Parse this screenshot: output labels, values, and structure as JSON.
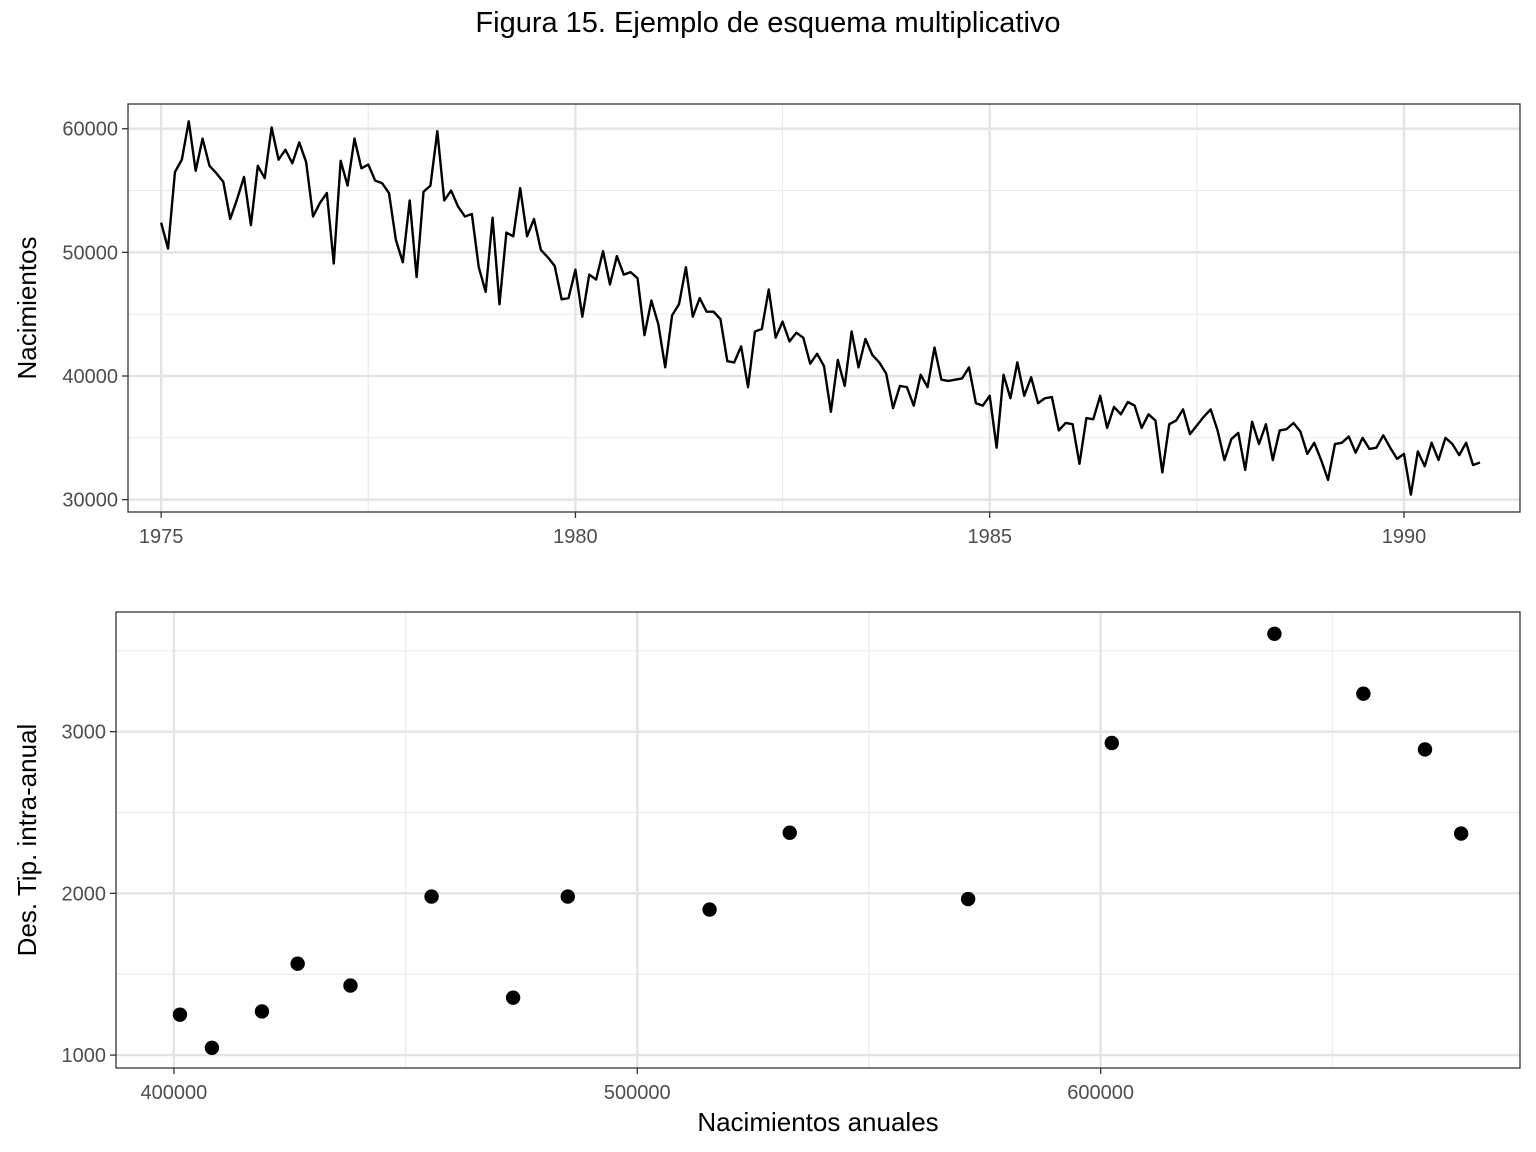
{
  "figure": {
    "title": "Figura 15. Ejemplo de esquema multiplicativo"
  },
  "chart_data": [
    {
      "type": "line",
      "title": "",
      "xlabel": "",
      "ylabel": "Nacimientos",
      "xlim": [
        1974.6,
        1991.4
      ],
      "ylim": [
        29000,
        62000
      ],
      "x_ticks": [
        1975,
        1980,
        1985,
        1990
      ],
      "x_tick_labels": [
        "1975",
        "1980",
        "1985",
        "1990"
      ],
      "y_ticks": [
        30000,
        40000,
        50000,
        60000
      ],
      "y_tick_labels": [
        "30000",
        "40000",
        "50000",
        "60000"
      ],
      "grid": true,
      "line_color": "#000000",
      "start": 1975,
      "frequency": 12,
      "values": [
        52400,
        50300,
        56500,
        57500,
        60600,
        56600,
        59200,
        57000,
        56400,
        55700,
        52700,
        54300,
        56100,
        52200,
        57000,
        56000,
        60100,
        57500,
        58300,
        57200,
        58900,
        57300,
        52900,
        54000,
        54800,
        49100,
        57400,
        55400,
        59200,
        56800,
        57100,
        55800,
        55600,
        54800,
        51000,
        49200,
        54200,
        48000,
        54900,
        55400,
        59800,
        54200,
        55000,
        53700,
        52900,
        53100,
        48800,
        46800,
        52800,
        45800,
        51600,
        51300,
        55200,
        51300,
        52700,
        50200,
        49600,
        48900,
        46200,
        46300,
        48600,
        44800,
        48200,
        47800,
        50100,
        47400,
        49700,
        48200,
        48400,
        47900,
        43300,
        46100,
        44200,
        40700,
        44900,
        45800,
        48800,
        44800,
        46300,
        45200,
        45200,
        44600,
        41200,
        41100,
        42400,
        39100,
        43600,
        43800,
        47000,
        43100,
        44400,
        42800,
        43500,
        43100,
        41000,
        41800,
        40800,
        37100,
        41300,
        39200,
        43600,
        40700,
        43000,
        41700,
        41100,
        40200,
        37400,
        39200,
        39100,
        37600,
        40100,
        39100,
        42300,
        39700,
        39600,
        39700,
        39800,
        40700,
        37800,
        37600,
        38400,
        34200,
        40100,
        38200,
        41100,
        38400,
        39900,
        37800,
        38200,
        38300,
        35600,
        36200,
        36100,
        32900,
        36600,
        36500,
        38400,
        35800,
        37500,
        36900,
        37900,
        37600,
        35800,
        36900,
        36400,
        32200,
        36100,
        36400,
        37300,
        35300,
        36000,
        36700,
        37300,
        35600,
        33200,
        34900,
        35400,
        32400,
        36300,
        34500,
        36100,
        33200,
        35600,
        35700,
        36200,
        35500,
        33700,
        34600,
        33200,
        31600,
        34500,
        34600,
        35100,
        33800,
        35000,
        34100,
        34200,
        35200,
        34200,
        33300,
        33700,
        30400,
        33900,
        32700,
        34600,
        33200,
        35000,
        34500,
        33600,
        34600,
        32800,
        33000
      ]
    },
    {
      "type": "scatter",
      "title": "",
      "xlabel": "Nacimientos anuales",
      "ylabel": "Des. Tip. intra-anual",
      "xlim": [
        387500,
        690500
      ],
      "ylim": [
        920,
        3740
      ],
      "x_ticks": [
        400000,
        500000,
        600000
      ],
      "x_tick_labels": [
        "400000",
        "500000",
        "600000"
      ],
      "y_ticks": [
        1000,
        2000,
        3000
      ],
      "y_tick_labels": [
        "1000",
        "2000",
        "3000"
      ],
      "grid": true,
      "point_color": "#000000",
      "points": [
        {
          "x": 401300,
          "y": 1250
        },
        {
          "x": 408200,
          "y": 1045
        },
        {
          "x": 419000,
          "y": 1270
        },
        {
          "x": 426700,
          "y": 1565
        },
        {
          "x": 438100,
          "y": 1430
        },
        {
          "x": 455600,
          "y": 1980
        },
        {
          "x": 473200,
          "y": 1355
        },
        {
          "x": 485000,
          "y": 1980
        },
        {
          "x": 515600,
          "y": 1900
        },
        {
          "x": 532900,
          "y": 2375
        },
        {
          "x": 571400,
          "y": 1965
        },
        {
          "x": 602400,
          "y": 2930
        },
        {
          "x": 637500,
          "y": 3605
        },
        {
          "x": 656700,
          "y": 3235
        },
        {
          "x": 670000,
          "y": 2890
        },
        {
          "x": 677800,
          "y": 2370
        }
      ]
    }
  ]
}
